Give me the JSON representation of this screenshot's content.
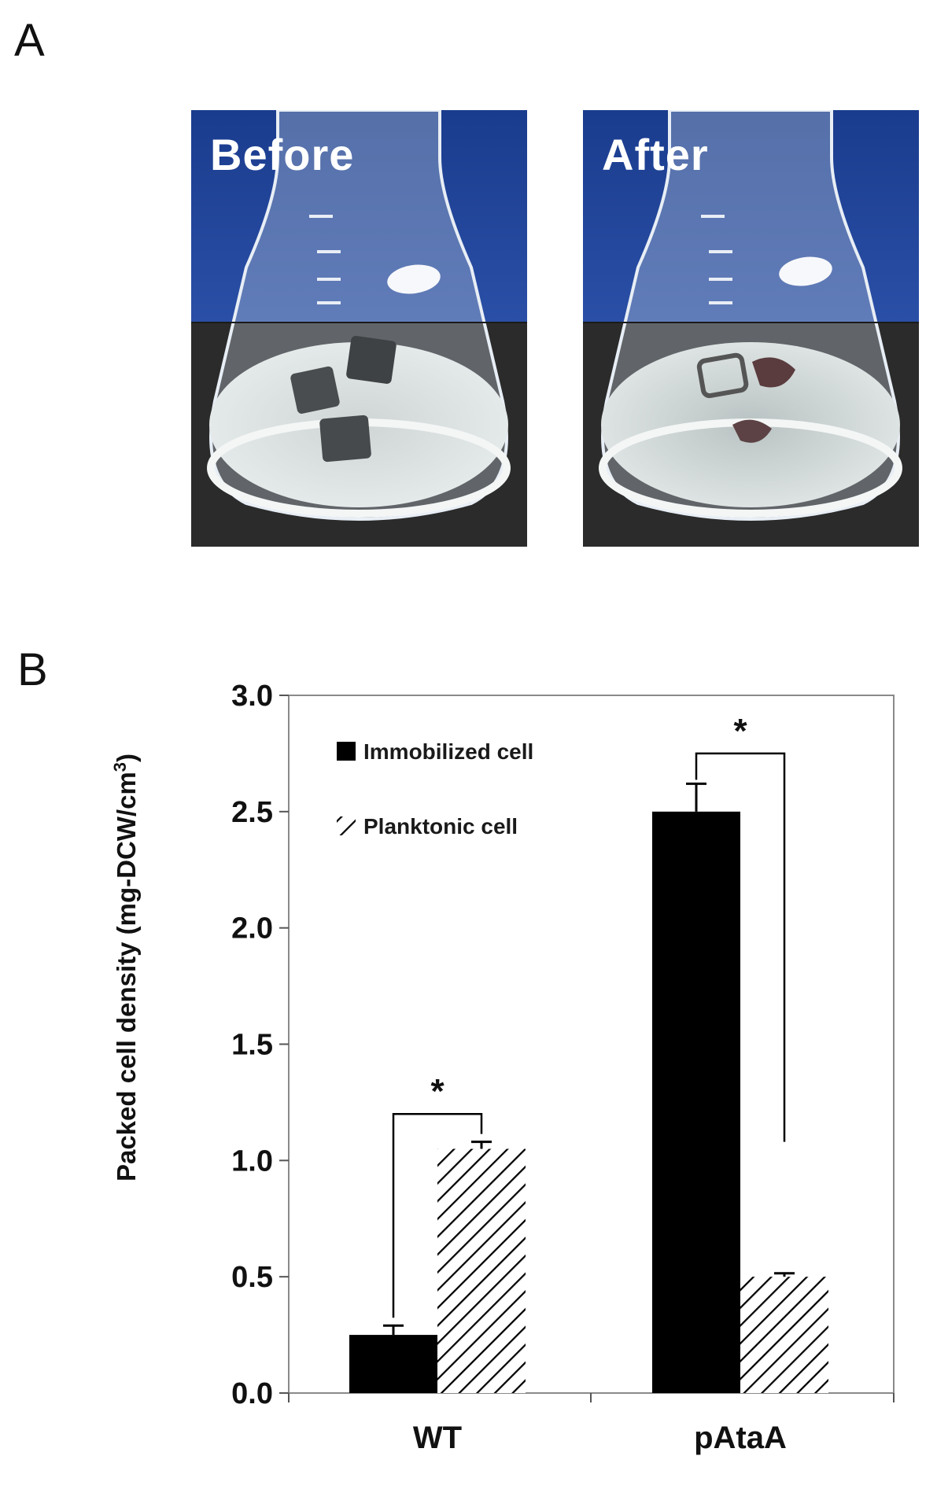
{
  "panels": {
    "a": {
      "letter": "A",
      "before_label": "Before",
      "after_label": "After"
    },
    "b": {
      "letter": "B"
    }
  },
  "colors": {
    "immobilized": "#000000",
    "planktonic_hatch": "#000000",
    "photo_bg": "#1c3b8a"
  },
  "chart_data": {
    "type": "bar",
    "categories": [
      "WT",
      "pAtaA"
    ],
    "series": [
      {
        "name": "Immobilized cell",
        "pattern": "solid",
        "values": [
          0.25,
          2.5
        ],
        "errors": [
          0.04,
          0.12
        ]
      },
      {
        "name": "Planktonic cell",
        "pattern": "hatched",
        "values": [
          1.05,
          0.5
        ],
        "errors": [
          0.03,
          0.015
        ]
      }
    ],
    "ylabel": "Packed cell density (mg-DCW/cm³)",
    "ylabel_main": "Packed cell density (mg-DCW/cm",
    "ylabel_sup": "3",
    "ylabel_end": ")",
    "ylim": [
      0,
      3.0
    ],
    "yticks": [
      "0.0",
      "0.5",
      "1.0",
      "1.5",
      "2.0",
      "2.5",
      "3.0"
    ],
    "significance": [
      {
        "category": "WT",
        "label": "*"
      },
      {
        "category": "pAtaA",
        "label": "*"
      }
    ],
    "legend_position": "top-left"
  }
}
